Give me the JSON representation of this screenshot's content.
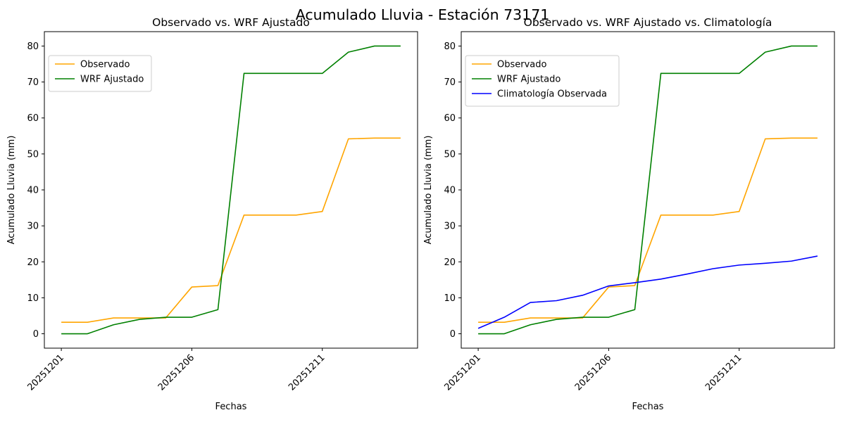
{
  "figure": {
    "suptitle": "Acumulado Lluvia - Estación 73171"
  },
  "colors": {
    "observado": "#ffa500",
    "wrf": "#008000",
    "clima": "#0000ff"
  },
  "chart_data": [
    {
      "type": "line",
      "title": "Observado vs. WRF Ajustado",
      "xlabel": "Fechas",
      "ylabel": "Acumulado Lluvia (mm)",
      "x": [
        "20251201",
        "20251202",
        "20251203",
        "20251204",
        "20251205",
        "20251206",
        "20251207",
        "20251208",
        "20251209",
        "20251210",
        "20251211",
        "20251212",
        "20251213",
        "20251214"
      ],
      "x_ticks": [
        "20251201",
        "20251206",
        "20251211"
      ],
      "y_ticks": [
        0,
        10,
        20,
        30,
        40,
        50,
        60,
        70,
        80
      ],
      "ylim": [
        -4,
        84
      ],
      "grid": false,
      "legend_position": "upper left",
      "series": [
        {
          "name": "Observado",
          "color_key": "observado",
          "values": [
            3.2,
            3.2,
            4.4,
            4.4,
            4.4,
            13.0,
            13.4,
            33.0,
            33.0,
            33.0,
            34.0,
            54.2,
            54.4,
            54.4
          ]
        },
        {
          "name": "WRF Ajustado",
          "color_key": "wrf",
          "values": [
            0.0,
            0.0,
            2.5,
            4.0,
            4.6,
            4.6,
            6.7,
            72.4,
            72.4,
            72.4,
            72.4,
            78.3,
            80.0,
            80.0
          ]
        }
      ]
    },
    {
      "type": "line",
      "title": "Observado vs. WRF Ajustado vs. Climatología",
      "xlabel": "Fechas",
      "ylabel": "Acumulado Lluvia (mm)",
      "x": [
        "20251201",
        "20251202",
        "20251203",
        "20251204",
        "20251205",
        "20251206",
        "20251207",
        "20251208",
        "20251209",
        "20251210",
        "20251211",
        "20251212",
        "20251213",
        "20251214"
      ],
      "x_ticks": [
        "20251201",
        "20251206",
        "20251211"
      ],
      "y_ticks": [
        0,
        10,
        20,
        30,
        40,
        50,
        60,
        70,
        80
      ],
      "ylim": [
        -4,
        84
      ],
      "grid": false,
      "legend_position": "upper left",
      "series": [
        {
          "name": "Observado",
          "color_key": "observado",
          "values": [
            3.2,
            3.2,
            4.4,
            4.4,
            4.4,
            13.0,
            13.4,
            33.0,
            33.0,
            33.0,
            34.0,
            54.2,
            54.4,
            54.4
          ]
        },
        {
          "name": "WRF Ajustado",
          "color_key": "wrf",
          "values": [
            0.0,
            0.0,
            2.5,
            4.0,
            4.6,
            4.6,
            6.7,
            72.4,
            72.4,
            72.4,
            72.4,
            78.3,
            80.0,
            80.0
          ]
        },
        {
          "name": "Climatología Observada",
          "color_key": "clima",
          "values": [
            1.5,
            4.6,
            8.7,
            9.2,
            10.7,
            13.3,
            14.2,
            15.2,
            16.6,
            18.1,
            19.1,
            19.6,
            20.2,
            21.6
          ]
        }
      ]
    }
  ]
}
